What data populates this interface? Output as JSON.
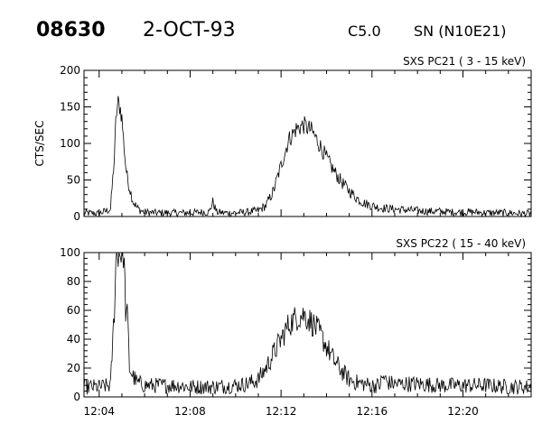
{
  "header": {
    "event_id": "08630",
    "date": "2-OCT-93",
    "flare_class": "C5.0",
    "location": "SN (N10E21)"
  },
  "chart_data": [
    {
      "type": "line",
      "title": "SXS PC21  (  3 - 15 keV)",
      "ylabel": "CTS/SEC",
      "xlabel": "",
      "xlim": [
        "12:03:20",
        "12:23:00"
      ],
      "ylim": [
        0,
        200
      ],
      "yticks": [
        0,
        50,
        100,
        150,
        200
      ],
      "xticks": [
        "12:04",
        "12:08",
        "12:12",
        "12:16",
        "12:20"
      ],
      "xtick_labels_shown": false,
      "grid": false,
      "series": [
        {
          "x": [
            "12:03:20",
            "12:04:00",
            "12:04:30",
            "12:04:40",
            "12:04:45",
            "12:04:50",
            "12:04:55",
            "12:05:00",
            "12:05:05",
            "12:05:10",
            "12:05:15",
            "12:05:20",
            "12:05:25",
            "12:05:30",
            "12:05:40",
            "12:05:50",
            "12:06:00",
            "12:06:30",
            "12:07:00",
            "12:07:30",
            "12:08:00",
            "12:08:30",
            "12:08:50",
            "12:09:00",
            "12:09:10",
            "12:09:30",
            "12:10:00",
            "12:10:30",
            "12:11:00",
            "12:11:20",
            "12:11:40",
            "12:12:00",
            "12:12:20",
            "12:12:40",
            "12:13:00",
            "12:13:20",
            "12:13:40",
            "12:14:00",
            "12:14:20",
            "12:14:40",
            "12:15:00",
            "12:15:20",
            "12:15:40",
            "12:16:00",
            "12:16:20",
            "12:16:40",
            "12:17:00",
            "12:17:30",
            "12:18:00",
            "12:18:30",
            "12:19:00",
            "12:19:30",
            "12:20:00",
            "12:20:30",
            "12:21:00",
            "12:21:30",
            "12:22:00",
            "12:22:30",
            "12:23:00"
          ],
          "y": [
            5,
            4,
            10,
            80,
            140,
            155,
            150,
            135,
            100,
            70,
            50,
            40,
            30,
            20,
            12,
            8,
            6,
            5,
            5,
            5,
            5,
            6,
            6,
            20,
            6,
            5,
            5,
            6,
            8,
            15,
            35,
            70,
            105,
            120,
            125,
            118,
            100,
            80,
            62,
            47,
            35,
            25,
            18,
            15,
            12,
            11,
            10,
            9,
            8,
            7,
            7,
            6,
            6,
            6,
            5,
            5,
            5,
            4,
            4
          ]
        }
      ]
    },
    {
      "type": "line",
      "title": "SXS PC22  ( 15 - 40 keV)",
      "ylabel": "",
      "xlabel": "",
      "xlim": [
        "12:03:20",
        "12:23:00"
      ],
      "ylim": [
        0,
        100
      ],
      "yticks": [
        0,
        20,
        40,
        60,
        80,
        100
      ],
      "xticks": [
        "12:04",
        "12:08",
        "12:12",
        "12:16",
        "12:20"
      ],
      "xtick_labels_shown": true,
      "grid": false,
      "series": [
        {
          "x": [
            "12:03:20",
            "12:04:00",
            "12:04:30",
            "12:04:40",
            "12:04:45",
            "12:04:50",
            "12:04:55",
            "12:05:00",
            "12:05:05",
            "12:05:10",
            "12:05:15",
            "12:05:20",
            "12:05:30",
            "12:05:40",
            "12:05:50",
            "12:06:00",
            "12:06:30",
            "12:07:00",
            "12:07:30",
            "12:08:00",
            "12:09:00",
            "12:10:00",
            "12:10:30",
            "12:11:00",
            "12:11:20",
            "12:11:40",
            "12:12:00",
            "12:12:20",
            "12:12:40",
            "12:13:00",
            "12:13:20",
            "12:13:40",
            "12:14:00",
            "12:14:20",
            "12:14:40",
            "12:15:00",
            "12:15:20",
            "12:15:40",
            "12:16:00",
            "12:16:20",
            "12:16:30",
            "12:16:40",
            "12:17:00",
            "12:17:30",
            "12:18:00",
            "12:19:00",
            "12:20:00",
            "12:21:00",
            "12:22:00",
            "12:23:00"
          ],
          "y": [
            7,
            7,
            8,
            60,
            100,
            100,
            100,
            100,
            100,
            60,
            55,
            20,
            14,
            10,
            9,
            8,
            8,
            8,
            8,
            7,
            7,
            8,
            9,
            12,
            20,
            30,
            40,
            50,
            55,
            57,
            52,
            45,
            35,
            25,
            18,
            12,
            10,
            9,
            8,
            8,
            14,
            10,
            9,
            9,
            9,
            8,
            8,
            8,
            7,
            7
          ]
        }
      ]
    }
  ]
}
